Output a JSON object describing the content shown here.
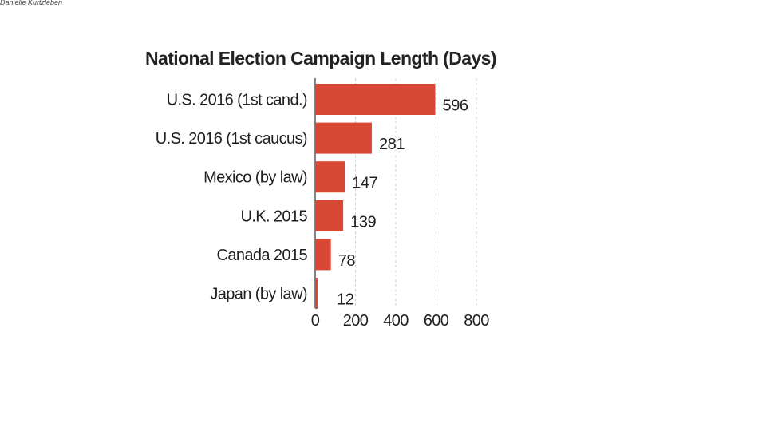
{
  "credit": "Danielle Kurtzleben",
  "colors": {
    "bar": "#d94834",
    "text": "#1f1f1f",
    "grid": "#cfcfcf"
  },
  "chart_data": {
    "type": "bar",
    "orientation": "horizontal",
    "title": "National Election Campaign Length (Days)",
    "categories": [
      "U.S. 2016 (1st cand.)",
      "U.S. 2016 (1st caucus)",
      "Mexico (by law)",
      "U.K. 2015",
      "Canada 2015",
      "Japan (by law)"
    ],
    "values": [
      596,
      281,
      147,
      139,
      78,
      12
    ],
    "xlim": [
      0,
      800
    ],
    "xticks": [
      0,
      200,
      400,
      600,
      800
    ],
    "xlabel": "",
    "ylabel": "",
    "grid": true,
    "legend": "none"
  }
}
